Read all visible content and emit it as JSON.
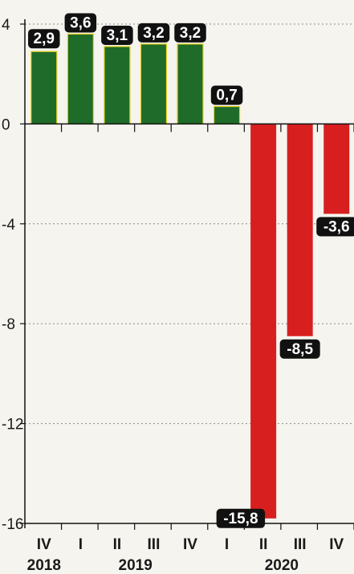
{
  "chart_data": {
    "type": "bar",
    "title": "",
    "xlabel": "",
    "ylabel": "",
    "categories": [
      "IV",
      "I",
      "II",
      "III",
      "IV",
      "I",
      "II",
      "III",
      "IV"
    ],
    "years": [
      {
        "label": "2018",
        "from": 0,
        "to": 0
      },
      {
        "label": "2019",
        "from": 1,
        "to": 4
      },
      {
        "label": "2020",
        "from": 5,
        "to": 8
      }
    ],
    "values": [
      2.9,
      3.6,
      3.1,
      3.2,
      3.2,
      0.7,
      -15.8,
      -8.5,
      -3.6
    ],
    "data_labels": [
      "2,9",
      "3,6",
      "3,1",
      "3,2",
      "3,2",
      "0,7",
      "-15,8",
      "-8,5",
      "-3,6"
    ],
    "ylim": [
      -16,
      4
    ],
    "yticks": [
      4,
      0,
      -4,
      -8,
      -12,
      -16
    ],
    "ytick_labels": [
      "4",
      "0",
      "-4",
      "-8",
      "-12",
      "-16"
    ],
    "grid": true,
    "colors": {
      "positive": "#1f6b2a",
      "positive_edge": "#e8d21a",
      "negative": "#d81f1f",
      "label_bg": "#111111",
      "label_text": "#ffffff",
      "axis": "#111111",
      "grid": "#8a8a8a"
    }
  }
}
